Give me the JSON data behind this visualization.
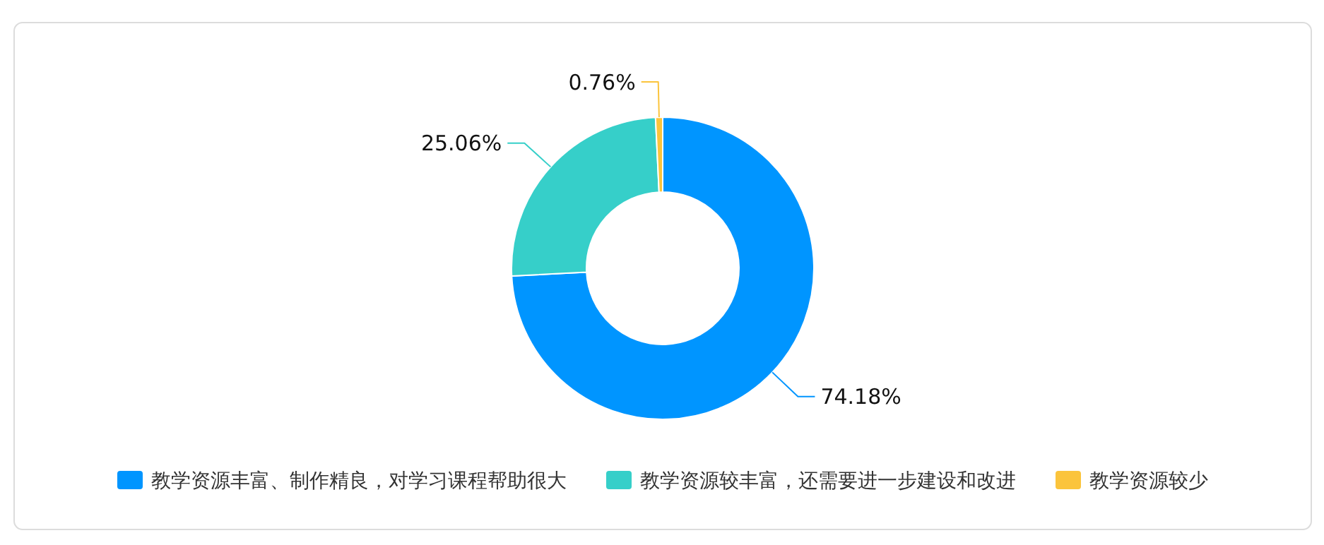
{
  "chart_data": {
    "type": "donut",
    "categories": [
      "教学资源丰富、制作精良，对学习课程帮助很大",
      "教学资源较丰富，还需要进一步建设和改进",
      "教学资源较少"
    ],
    "values": [
      74.18,
      25.06,
      0.76
    ],
    "colors": [
      "#0095ff",
      "#36cfc9",
      "#fbc43c"
    ],
    "value_labels": [
      "74.18%",
      "25.06%",
      "0.76%"
    ],
    "legend": "bottom"
  }
}
